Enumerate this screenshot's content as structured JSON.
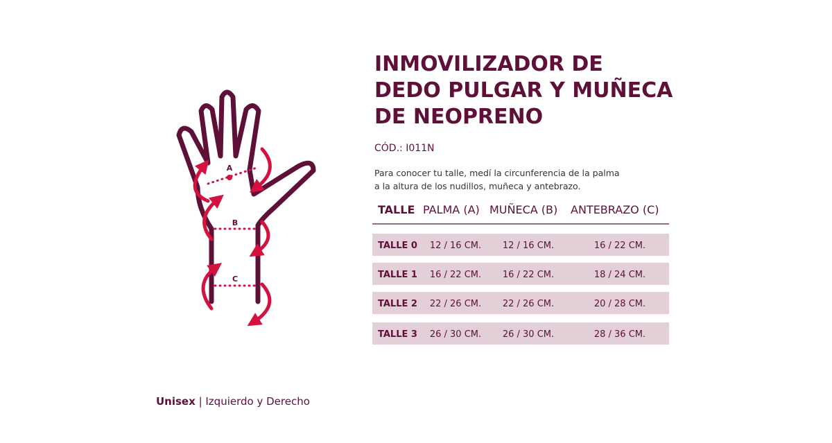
{
  "title_lines": [
    "INMOVILIZADOR DE",
    "DEDO PULGAR Y MUÑECA",
    "DE NEOPRENO"
  ],
  "code": "CÓD.: I011N",
  "description_lines": [
    "Para conocer tu talle, medí la circunferencia de la palma",
    "a la altura de los nudillos, muñeca y antebrazo."
  ],
  "table": {
    "header": [
      "TALLE",
      "PALMA (A)",
      "MUÑECA (B)",
      "ANTEBRAZO (C)"
    ],
    "rows": [
      [
        "TALLE 0",
        "12 / 16 CM.",
        "12 / 16 CM.",
        "16 / 22 CM."
      ],
      [
        "TALLE 1",
        "16 / 22 CM.",
        "16 / 22 CM.",
        "18 / 24 CM."
      ],
      [
        "TALLE 2",
        "22 / 26 CM.",
        "22 / 26 CM.",
        "20 / 28 CM."
      ],
      [
        "TALLE 3",
        "26 / 30 CM.",
        "26 / 30 CM.",
        "28 / 36 CM."
      ]
    ]
  },
  "hand_labels": [
    "A",
    "B",
    "C"
  ],
  "footer": {
    "bold": "Unisex",
    "rest": "| Izquierdo y Derecho"
  }
}
